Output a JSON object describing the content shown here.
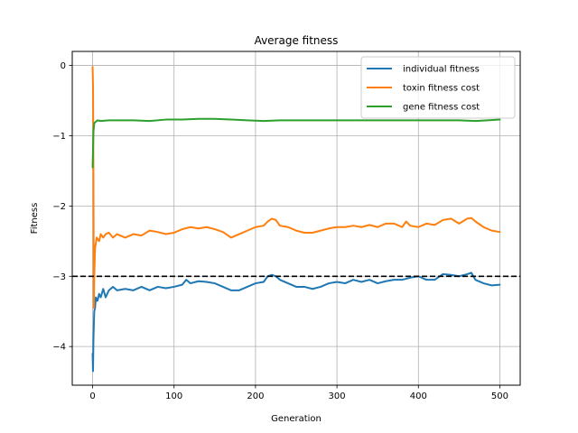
{
  "chart_data": {
    "type": "line",
    "title": "Average fitness",
    "xlabel": "Generation",
    "ylabel": "Fitness",
    "xlim": [
      -25,
      525
    ],
    "ylim": [
      -4.55,
      0.2
    ],
    "xticks": [
      0,
      100,
      200,
      300,
      400,
      500
    ],
    "xtick_labels": [
      "0",
      "100",
      "200",
      "300",
      "400",
      "500"
    ],
    "yticks": [
      0,
      -1,
      -2,
      -3,
      -4
    ],
    "ytick_labels": [
      "0",
      "−1",
      "−2",
      "−3",
      "−4"
    ],
    "grid": true,
    "legend_position": "top-right",
    "reference_line": {
      "y": -3.0,
      "style": "dashed",
      "color": "#000000"
    },
    "series": [
      {
        "name": "individual fitness",
        "color": "#1f77b4",
        "points": [
          [
            0,
            -4.1
          ],
          [
            0.5,
            -4.35
          ],
          [
            1,
            -3.9
          ],
          [
            2,
            -3.5
          ],
          [
            3,
            -3.45
          ],
          [
            4,
            -3.3
          ],
          [
            6,
            -3.35
          ],
          [
            8,
            -3.25
          ],
          [
            10,
            -3.3
          ],
          [
            13,
            -3.18
          ],
          [
            16,
            -3.3
          ],
          [
            20,
            -3.2
          ],
          [
            25,
            -3.15
          ],
          [
            30,
            -3.2
          ],
          [
            40,
            -3.18
          ],
          [
            50,
            -3.2
          ],
          [
            60,
            -3.15
          ],
          [
            70,
            -3.2
          ],
          [
            80,
            -3.15
          ],
          [
            90,
            -3.17
          ],
          [
            100,
            -3.15
          ],
          [
            110,
            -3.12
          ],
          [
            115,
            -3.05
          ],
          [
            120,
            -3.1
          ],
          [
            130,
            -3.07
          ],
          [
            140,
            -3.08
          ],
          [
            150,
            -3.1
          ],
          [
            160,
            -3.15
          ],
          [
            170,
            -3.2
          ],
          [
            180,
            -3.2
          ],
          [
            190,
            -3.15
          ],
          [
            200,
            -3.1
          ],
          [
            210,
            -3.08
          ],
          [
            215,
            -3.0
          ],
          [
            220,
            -2.98
          ],
          [
            225,
            -3.0
          ],
          [
            230,
            -3.05
          ],
          [
            240,
            -3.1
          ],
          [
            250,
            -3.15
          ],
          [
            260,
            -3.15
          ],
          [
            270,
            -3.18
          ],
          [
            280,
            -3.15
          ],
          [
            290,
            -3.1
          ],
          [
            300,
            -3.08
          ],
          [
            310,
            -3.1
          ],
          [
            320,
            -3.05
          ],
          [
            330,
            -3.08
          ],
          [
            340,
            -3.05
          ],
          [
            350,
            -3.1
          ],
          [
            360,
            -3.07
          ],
          [
            370,
            -3.05
          ],
          [
            380,
            -3.05
          ],
          [
            390,
            -3.02
          ],
          [
            400,
            -3.0
          ],
          [
            410,
            -3.05
          ],
          [
            420,
            -3.05
          ],
          [
            430,
            -2.97
          ],
          [
            440,
            -2.98
          ],
          [
            450,
            -3.0
          ],
          [
            460,
            -2.97
          ],
          [
            465,
            -2.95
          ],
          [
            470,
            -3.05
          ],
          [
            480,
            -3.1
          ],
          [
            490,
            -3.13
          ],
          [
            500,
            -3.12
          ]
        ]
      },
      {
        "name": "toxin fitness cost",
        "color": "#ff7f0e",
        "points": [
          [
            0,
            -0.02
          ],
          [
            0.5,
            -0.3
          ],
          [
            1,
            -1.5
          ],
          [
            1.5,
            -3.45
          ],
          [
            2,
            -3.0
          ],
          [
            3,
            -2.6
          ],
          [
            5,
            -2.45
          ],
          [
            8,
            -2.5
          ],
          [
            10,
            -2.4
          ],
          [
            13,
            -2.45
          ],
          [
            16,
            -2.4
          ],
          [
            20,
            -2.38
          ],
          [
            25,
            -2.45
          ],
          [
            30,
            -2.4
          ],
          [
            40,
            -2.45
          ],
          [
            50,
            -2.4
          ],
          [
            60,
            -2.42
          ],
          [
            70,
            -2.35
          ],
          [
            80,
            -2.37
          ],
          [
            90,
            -2.4
          ],
          [
            100,
            -2.38
          ],
          [
            110,
            -2.33
          ],
          [
            120,
            -2.3
          ],
          [
            130,
            -2.32
          ],
          [
            140,
            -2.3
          ],
          [
            150,
            -2.33
          ],
          [
            160,
            -2.37
          ],
          [
            170,
            -2.45
          ],
          [
            180,
            -2.4
          ],
          [
            190,
            -2.35
          ],
          [
            200,
            -2.3
          ],
          [
            210,
            -2.28
          ],
          [
            215,
            -2.22
          ],
          [
            220,
            -2.18
          ],
          [
            225,
            -2.2
          ],
          [
            230,
            -2.28
          ],
          [
            240,
            -2.3
          ],
          [
            250,
            -2.35
          ],
          [
            260,
            -2.38
          ],
          [
            270,
            -2.38
          ],
          [
            280,
            -2.35
          ],
          [
            290,
            -2.32
          ],
          [
            300,
            -2.3
          ],
          [
            310,
            -2.3
          ],
          [
            320,
            -2.28
          ],
          [
            330,
            -2.3
          ],
          [
            340,
            -2.27
          ],
          [
            350,
            -2.3
          ],
          [
            360,
            -2.25
          ],
          [
            370,
            -2.25
          ],
          [
            380,
            -2.3
          ],
          [
            385,
            -2.22
          ],
          [
            390,
            -2.28
          ],
          [
            400,
            -2.3
          ],
          [
            410,
            -2.25
          ],
          [
            420,
            -2.27
          ],
          [
            430,
            -2.2
          ],
          [
            440,
            -2.18
          ],
          [
            450,
            -2.25
          ],
          [
            460,
            -2.18
          ],
          [
            465,
            -2.17
          ],
          [
            470,
            -2.22
          ],
          [
            480,
            -2.3
          ],
          [
            490,
            -2.35
          ],
          [
            500,
            -2.37
          ]
        ]
      },
      {
        "name": "gene fitness cost",
        "color": "#2ca02c",
        "points": [
          [
            0,
            -1.45
          ],
          [
            0.5,
            -1.2
          ],
          [
            1,
            -0.95
          ],
          [
            2,
            -0.82
          ],
          [
            4,
            -0.8
          ],
          [
            6,
            -0.78
          ],
          [
            10,
            -0.79
          ],
          [
            20,
            -0.78
          ],
          [
            30,
            -0.78
          ],
          [
            50,
            -0.78
          ],
          [
            70,
            -0.79
          ],
          [
            90,
            -0.77
          ],
          [
            110,
            -0.77
          ],
          [
            130,
            -0.76
          ],
          [
            150,
            -0.76
          ],
          [
            170,
            -0.77
          ],
          [
            190,
            -0.78
          ],
          [
            210,
            -0.79
          ],
          [
            230,
            -0.78
          ],
          [
            250,
            -0.78
          ],
          [
            270,
            -0.78
          ],
          [
            290,
            -0.78
          ],
          [
            310,
            -0.78
          ],
          [
            330,
            -0.78
          ],
          [
            350,
            -0.78
          ],
          [
            370,
            -0.78
          ],
          [
            390,
            -0.78
          ],
          [
            410,
            -0.78
          ],
          [
            430,
            -0.78
          ],
          [
            450,
            -0.78
          ],
          [
            470,
            -0.79
          ],
          [
            485,
            -0.78
          ],
          [
            500,
            -0.77
          ]
        ]
      }
    ]
  }
}
